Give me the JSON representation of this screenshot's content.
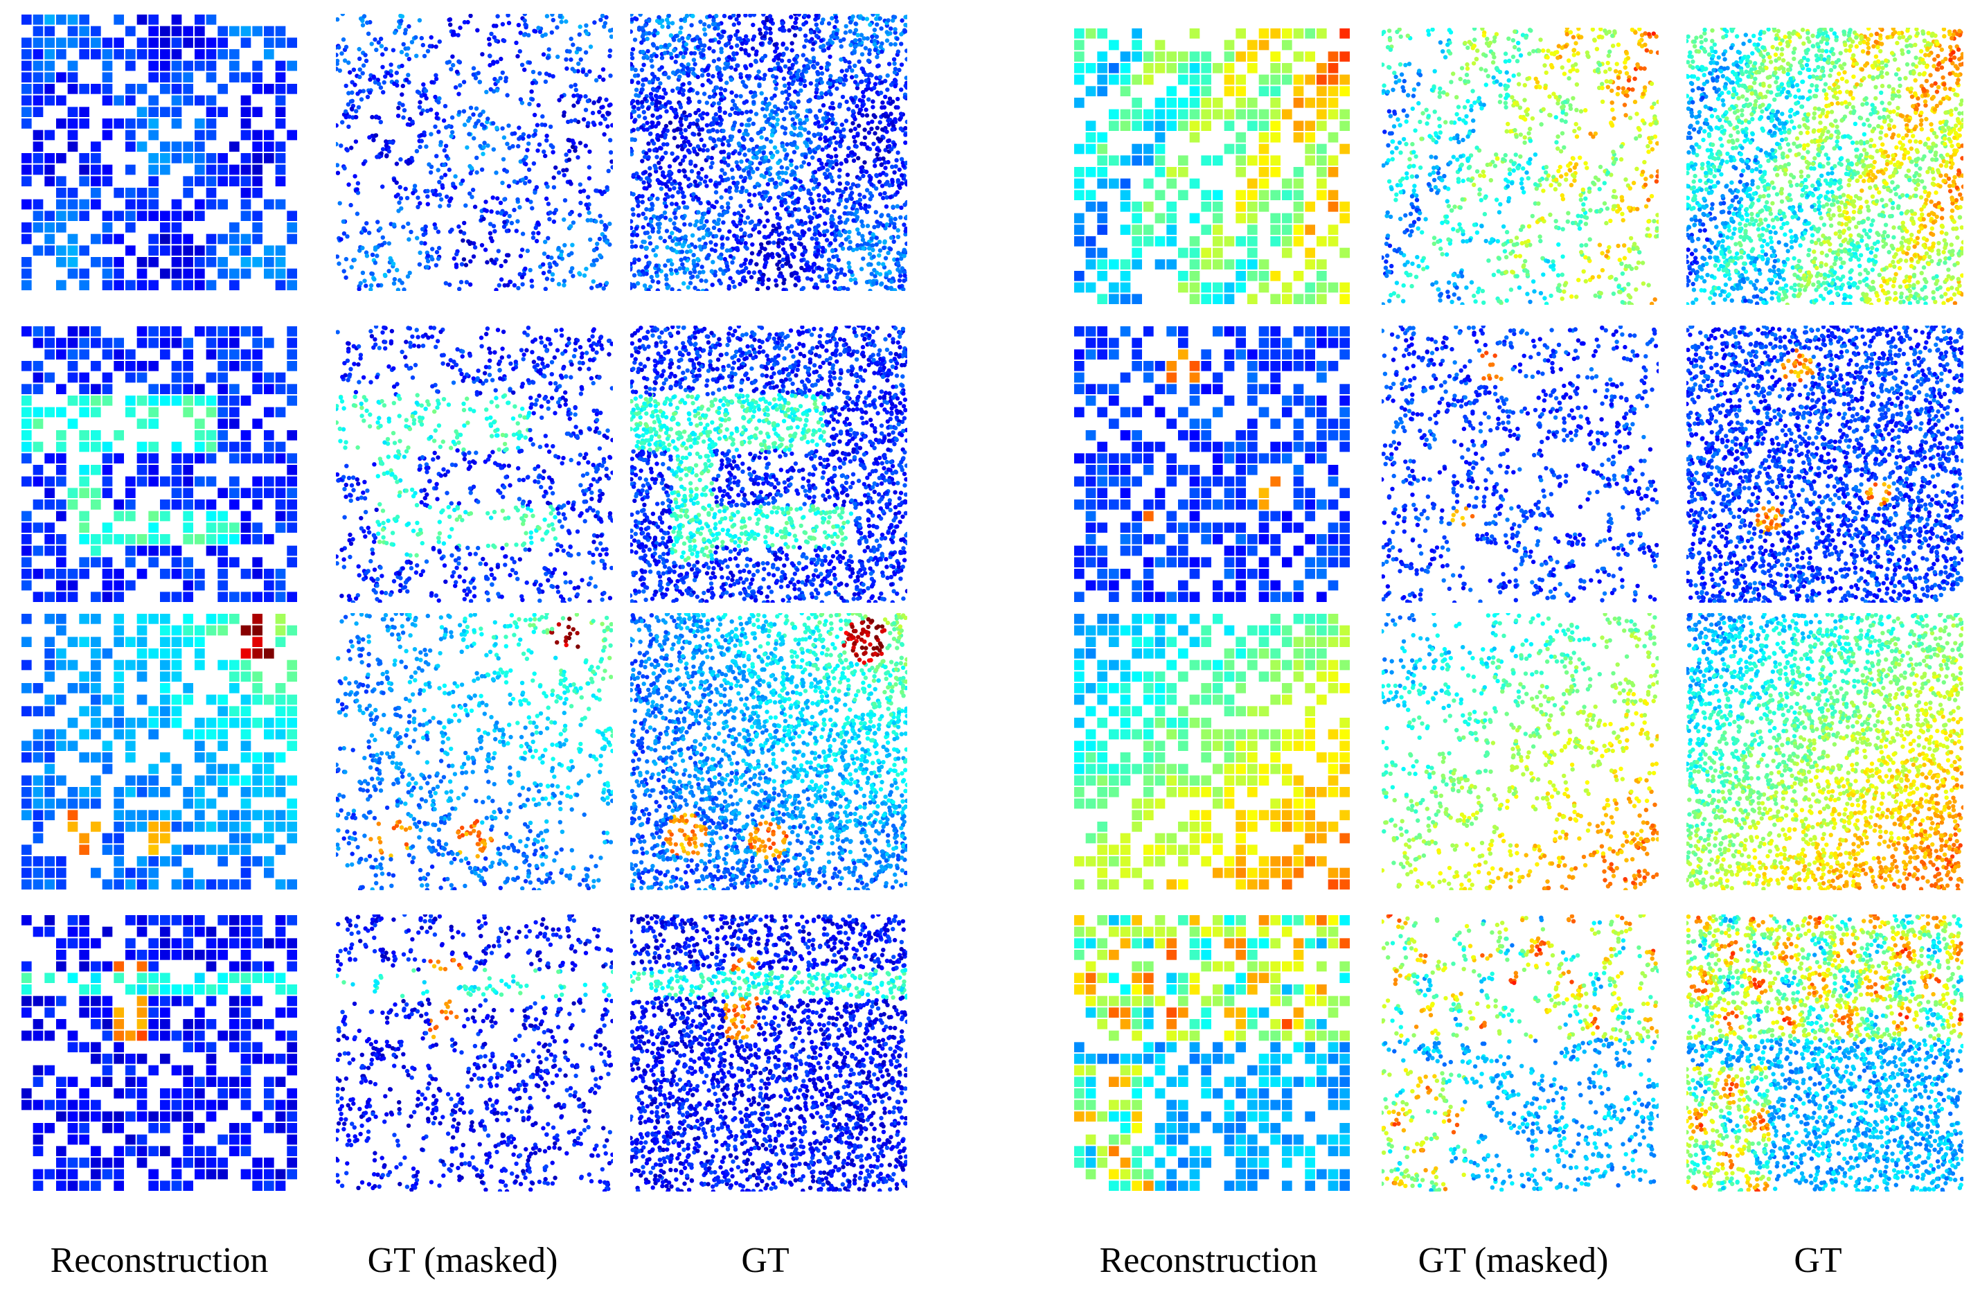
{
  "figure": {
    "left_group": {
      "column_labels": [
        "Reconstruction",
        "GT (masked)",
        "GT"
      ],
      "rows": 4
    },
    "right_group": {
      "column_labels": [
        "Reconstruction",
        "GT (masked)",
        "GT"
      ],
      "rows": 4
    }
  },
  "colormap": {
    "name": "jet",
    "stops": [
      "#00007f",
      "#0000ff",
      "#007fff",
      "#00ffff",
      "#7fff7f",
      "#ffff00",
      "#ff7f00",
      "#ff0000",
      "#7f0000"
    ]
  },
  "background_color": "#ffffff",
  "label_color": "#000000"
}
